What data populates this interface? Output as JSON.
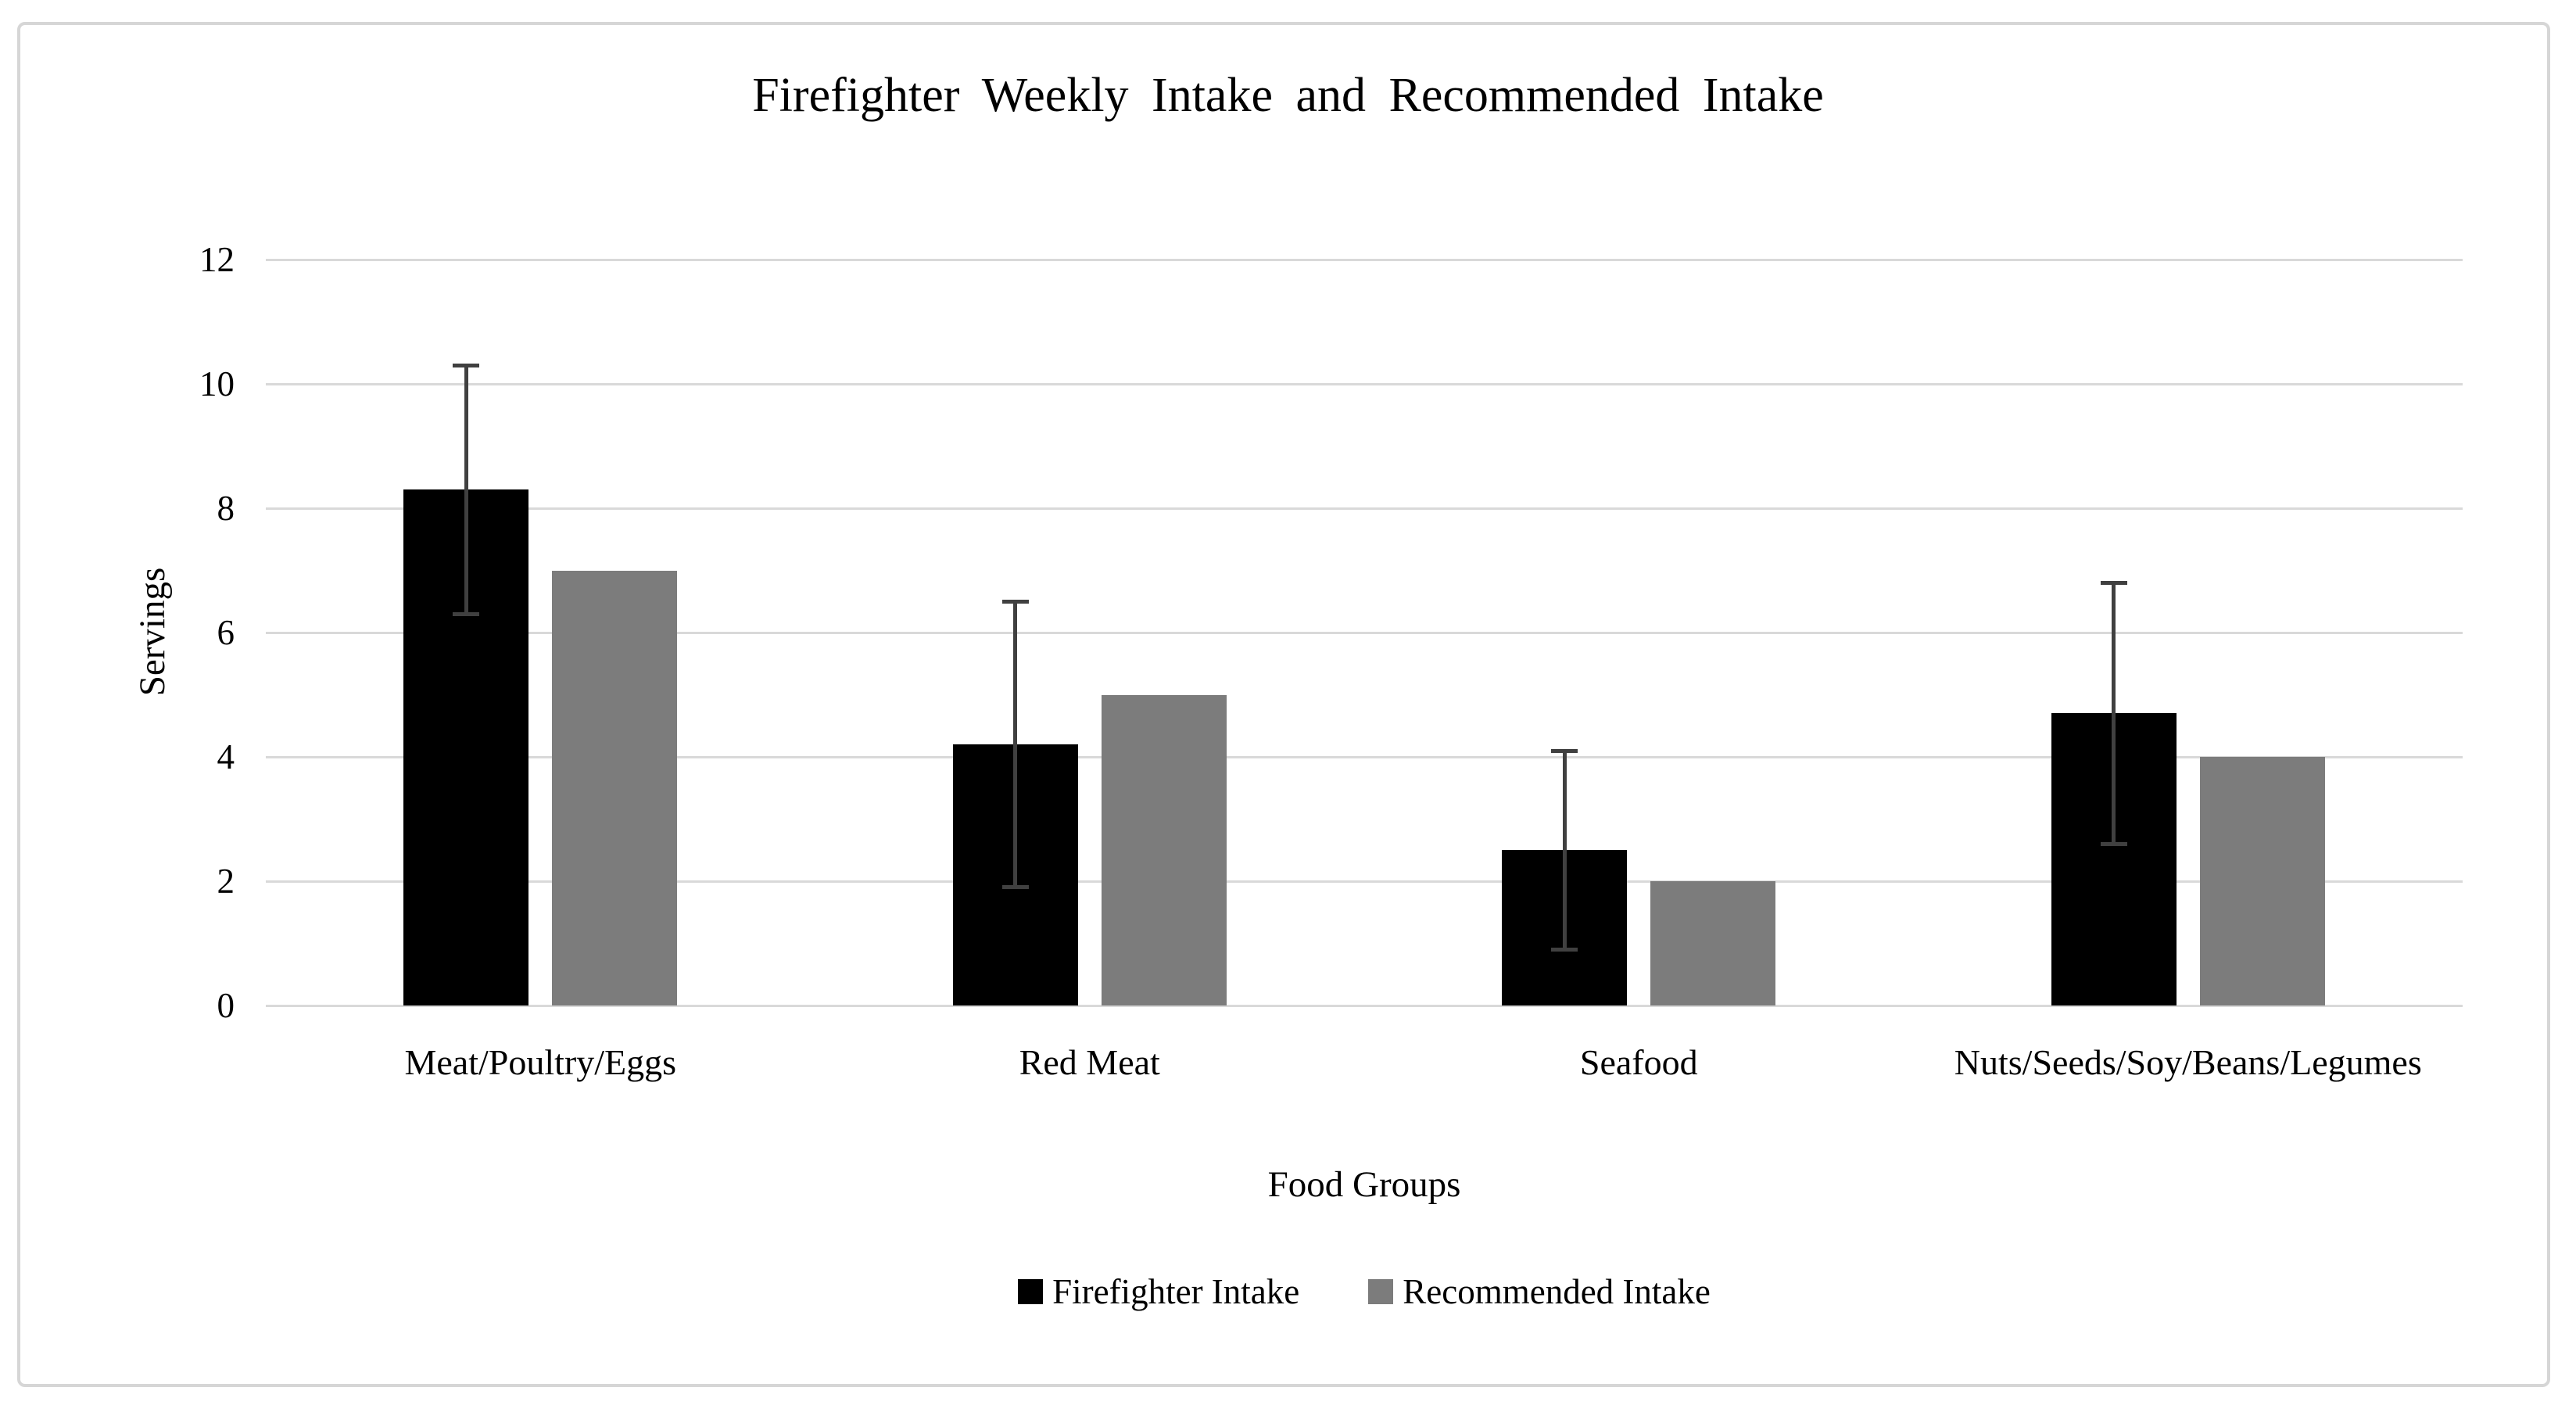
{
  "chart_data": {
    "type": "bar",
    "title": "Firefighter Weekly Intake and Recommended Intake",
    "xlabel": "Food Groups",
    "ylabel": "Servings",
    "ylim": [
      0,
      12
    ],
    "yticks": [
      0,
      2,
      4,
      6,
      8,
      10,
      12
    ],
    "grid": true,
    "legend_position": "bottom",
    "categories": [
      "Meat/Poultry/Eggs",
      "Red Meat",
      "Seafood",
      "Nuts/Seeds/Soy/Beans/Legumes"
    ],
    "series": [
      {
        "name": "Firefighter Intake",
        "color": "#000000",
        "values": [
          8.3,
          4.2,
          2.5,
          4.7
        ],
        "error": [
          2.0,
          2.3,
          1.6,
          2.1
        ]
      },
      {
        "name": "Recommended Intake",
        "color": "#7c7c7c",
        "values": [
          7,
          5,
          2,
          4
        ]
      }
    ],
    "error_bar_color": "#404040",
    "gridline_color": "#d9d9d9",
    "frame_border_color": "#d6d6d6",
    "background_color": "#ffffff"
  }
}
